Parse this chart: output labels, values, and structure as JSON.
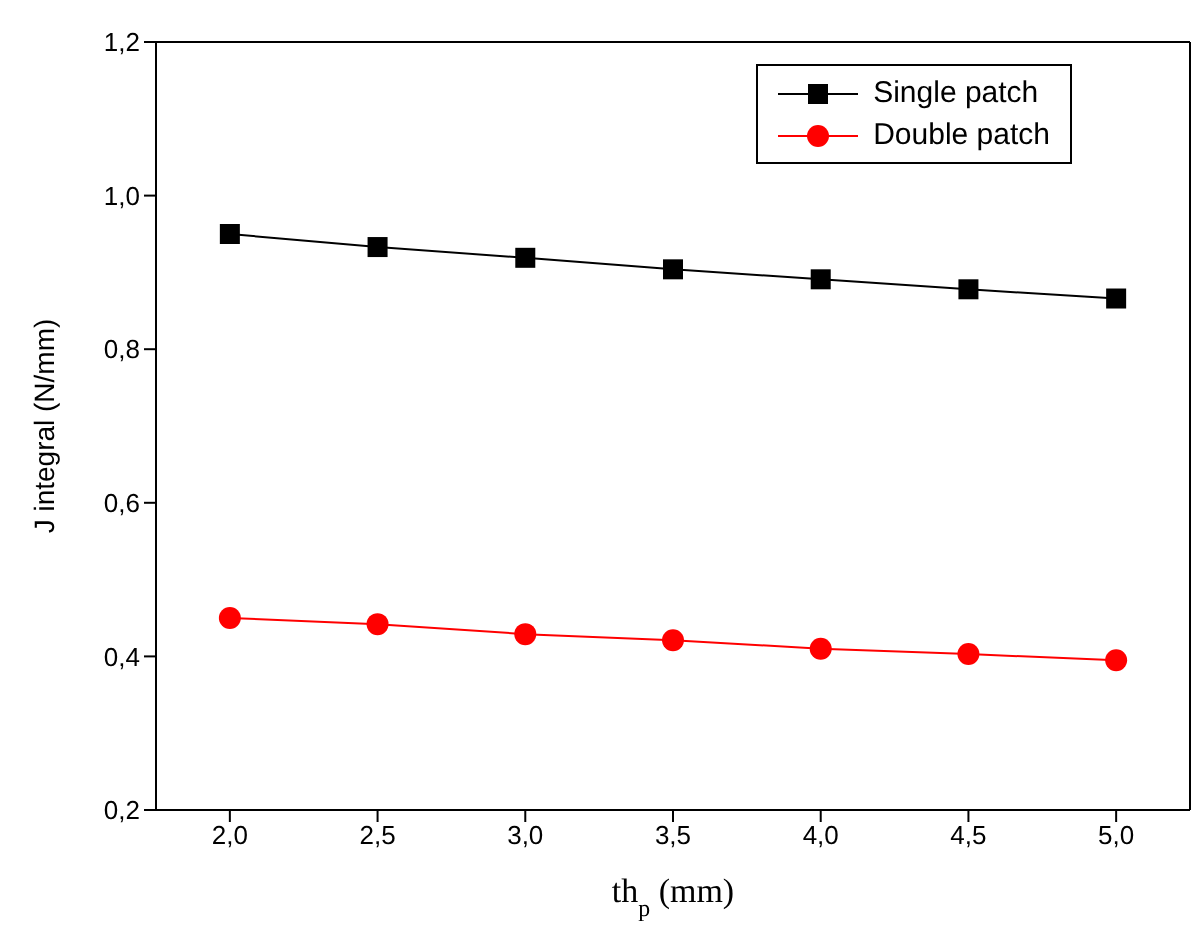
{
  "chart_data": {
    "type": "line",
    "xlabel": "th$_{p}$ (mm)",
    "ylabel": "J integral (N/mm)",
    "x": [
      2.0,
      2.5,
      3.0,
      3.5,
      4.0,
      4.5,
      5.0
    ],
    "series": [
      {
        "name": "Single patch",
        "color": "#000000",
        "marker": "square",
        "values": [
          0.95,
          0.933,
          0.919,
          0.904,
          0.891,
          0.878,
          0.866
        ]
      },
      {
        "name": "Double patch",
        "color": "#ff0000",
        "marker": "circle",
        "values": [
          0.45,
          0.442,
          0.429,
          0.421,
          0.41,
          0.403,
          0.395
        ]
      }
    ],
    "xlim": [
      1.75,
      5.25
    ],
    "xticks": [
      {
        "value": 2.0,
        "label": "2,0"
      },
      {
        "value": 2.5,
        "label": "2,5"
      },
      {
        "value": 3.0,
        "label": "3,0"
      },
      {
        "value": 3.5,
        "label": "3,5"
      },
      {
        "value": 4.0,
        "label": "4,0"
      },
      {
        "value": 4.5,
        "label": "4,5"
      },
      {
        "value": 5.0,
        "label": "5,0"
      }
    ],
    "ylim": [
      0.2,
      1.2
    ],
    "yticks": [
      {
        "value": 0.2,
        "label": "0,2"
      },
      {
        "value": 0.4,
        "label": "0,4"
      },
      {
        "value": 0.6,
        "label": "0,6"
      },
      {
        "value": 0.8,
        "label": "0,8"
      },
      {
        "value": 1.0,
        "label": "1,0"
      },
      {
        "value": 1.2,
        "label": "1,2"
      }
    ],
    "legend": "top right",
    "grid": false,
    "line_style": "solid"
  }
}
